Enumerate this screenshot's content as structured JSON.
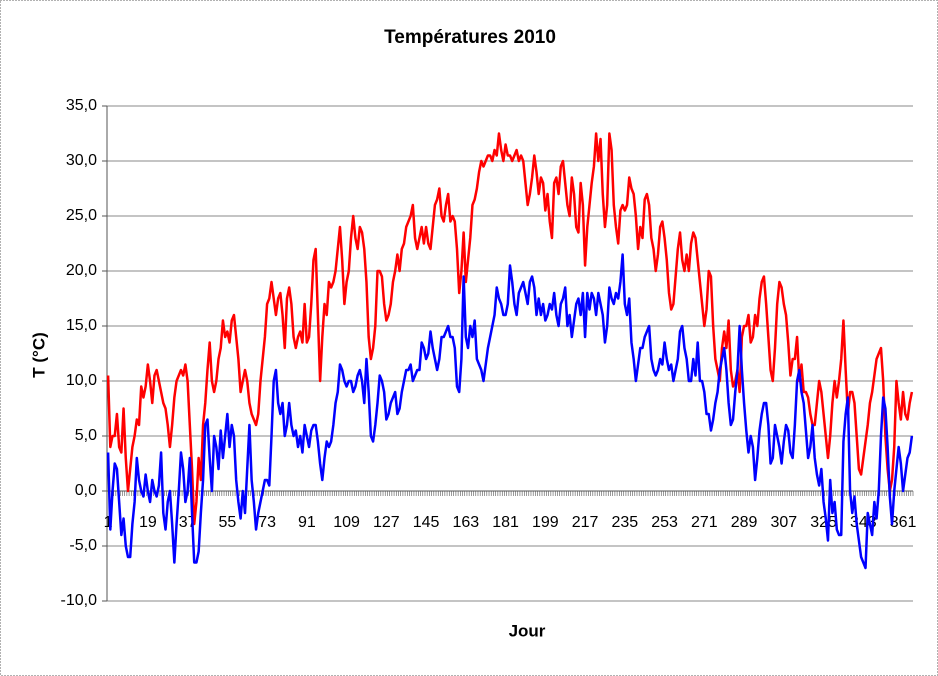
{
  "chart_data": {
    "type": "line",
    "title": "Températures 2010",
    "xlabel": "Jour",
    "ylabel": "T (°C)",
    "categories": [
      "1",
      null,
      null,
      null,
      null,
      null,
      null,
      null,
      null,
      null,
      null,
      null,
      null,
      null,
      null,
      null,
      null,
      null,
      "19",
      null,
      null,
      null,
      null,
      null,
      null,
      null,
      null,
      null,
      null,
      null,
      null,
      null,
      null,
      null,
      null,
      null,
      "37",
      null,
      null,
      null,
      null,
      null,
      null,
      null,
      null,
      null,
      null,
      null,
      null,
      null,
      null,
      null,
      null,
      null,
      "55",
      null,
      null,
      null,
      null,
      null,
      null,
      null,
      null,
      null,
      null,
      null,
      null,
      null,
      null,
      null,
      null,
      null,
      "73",
      null,
      null,
      null,
      null,
      null,
      null,
      null,
      null,
      null,
      null,
      null,
      null,
      null,
      null,
      null,
      null,
      null,
      "91",
      null,
      null,
      null,
      null,
      null,
      null,
      null,
      null,
      null,
      null,
      null,
      null,
      null,
      null,
      null,
      null,
      null,
      "109",
      null,
      null,
      null,
      null,
      null,
      null,
      null,
      null,
      null,
      null,
      null,
      null,
      null,
      null,
      null,
      null,
      null,
      "127",
      null,
      null,
      null,
      null,
      null,
      null,
      null,
      null,
      null,
      null,
      null,
      null,
      null,
      null,
      null,
      null,
      null,
      "145",
      null,
      null,
      null,
      null,
      null,
      null,
      null,
      null,
      null,
      null,
      null,
      null,
      null,
      null,
      null,
      null,
      null,
      "163",
      null,
      null,
      null,
      null,
      null,
      null,
      null,
      null,
      null,
      null,
      null,
      null,
      null,
      null,
      null,
      null,
      null,
      "181",
      null,
      null,
      null,
      null,
      null,
      null,
      null,
      null,
      null,
      null,
      null,
      null,
      null,
      null,
      null,
      null,
      null,
      "199",
      null,
      null,
      null,
      null,
      null,
      null,
      null,
      null,
      null,
      null,
      null,
      null,
      null,
      null,
      null,
      null,
      null,
      "217",
      null,
      null,
      null,
      null,
      null,
      null,
      null,
      null,
      null,
      null,
      null,
      null,
      null,
      null,
      null,
      null,
      null,
      "235",
      null,
      null,
      null,
      null,
      null,
      null,
      null,
      null,
      null,
      null,
      null,
      null,
      null,
      null,
      null,
      null,
      null,
      "253",
      null,
      null,
      null,
      null,
      null,
      null,
      null,
      null,
      null,
      null,
      null,
      null,
      null,
      null,
      null,
      null,
      null,
      "271",
      null,
      null,
      null,
      null,
      null,
      null,
      null,
      null,
      null,
      null,
      null,
      null,
      null,
      null,
      null,
      null,
      null,
      "289",
      null,
      null,
      null,
      null,
      null,
      null,
      null,
      null,
      null,
      null,
      null,
      null,
      null,
      null,
      null,
      null,
      null,
      "307",
      null,
      null,
      null,
      null,
      null,
      null,
      null,
      null,
      null,
      null,
      null,
      null,
      null,
      null,
      null,
      null,
      null,
      "325",
      null,
      null,
      null,
      null,
      null,
      null,
      null,
      null,
      null,
      null,
      null,
      null,
      null,
      null,
      null,
      null,
      null,
      "343",
      null,
      null,
      null,
      null,
      null,
      null,
      null,
      null,
      null,
      null,
      null,
      null,
      null,
      null,
      null,
      null,
      null,
      "361",
      null,
      null,
      null,
      null
    ],
    "series": [
      {
        "color": "#ff0000",
        "values": [
          10.5,
          4,
          5,
          5,
          7,
          4,
          3.5,
          7.5,
          3,
          0,
          2,
          4,
          5,
          6.5,
          6,
          9.5,
          8.5,
          9.5,
          11.5,
          10,
          8,
          10.5,
          11,
          10,
          9,
          8,
          7.5,
          6,
          4,
          6,
          8.5,
          10,
          10.5,
          11,
          10.5,
          11.5,
          10,
          6,
          2,
          -3,
          -1,
          3,
          1,
          6,
          8,
          11,
          13.5,
          10,
          9,
          10,
          12,
          13,
          15.5,
          14,
          14.5,
          13.5,
          15.5,
          16,
          14,
          12,
          9,
          10,
          11,
          10,
          8,
          7,
          6.5,
          6,
          7,
          10,
          12,
          14,
          17,
          17.5,
          19,
          17.5,
          16,
          17.5,
          18,
          16,
          13,
          17.5,
          18.5,
          17,
          14,
          13,
          14,
          14.5,
          13.5,
          17,
          13.5,
          14,
          17,
          21,
          22,
          16,
          10,
          14,
          17,
          16,
          19,
          18.5,
          19,
          20,
          22,
          24,
          21,
          17,
          19,
          20,
          23,
          25,
          23,
          22,
          24,
          23.5,
          22,
          19,
          14,
          12,
          13,
          15,
          20,
          20,
          19.5,
          17,
          15.5,
          16,
          17,
          19,
          20,
          21.5,
          20,
          22,
          22.5,
          24,
          24.5,
          25,
          26,
          23,
          22,
          23,
          24,
          22.5,
          24,
          22.5,
          22,
          24,
          26,
          26.5,
          27.5,
          25,
          24.5,
          26,
          27,
          24.5,
          25,
          24.5,
          22,
          18,
          20,
          23.5,
          19,
          21,
          23,
          26,
          26.5,
          27.5,
          29,
          30,
          29.5,
          30,
          30.5,
          30.5,
          30,
          31,
          30.5,
          32.5,
          31,
          30,
          31.5,
          30.5,
          30.5,
          30,
          30.5,
          31,
          30,
          30.5,
          30,
          28,
          26,
          27,
          28.5,
          30.5,
          29,
          27,
          28.5,
          28,
          25.5,
          27,
          24.5,
          23,
          28,
          28.5,
          27,
          29.5,
          30,
          28,
          26,
          25,
          28.5,
          27,
          24,
          23.5,
          28,
          26,
          20.5,
          24,
          26,
          28,
          29.5,
          32.5,
          30,
          32,
          27,
          24,
          26,
          32.5,
          31,
          26,
          24,
          22.5,
          25.5,
          26,
          25.5,
          26,
          28.5,
          27.5,
          27,
          25,
          22,
          24,
          23,
          26.5,
          27,
          26,
          23,
          22,
          20,
          21.5,
          24,
          24.5,
          23,
          21,
          18,
          16.5,
          17,
          19.5,
          22,
          23.5,
          21,
          20,
          21.5,
          20,
          22.5,
          23.5,
          23,
          21,
          19,
          17,
          15,
          16.5,
          20,
          19.5,
          15,
          12,
          11,
          10,
          13,
          14.5,
          13,
          15.5,
          11,
          9.5,
          10,
          11,
          9,
          14,
          15,
          15,
          16,
          13.5,
          14,
          16,
          15,
          17.5,
          19,
          19.5,
          17,
          14,
          11,
          10,
          13,
          17,
          19,
          18.5,
          17,
          16,
          13.5,
          10.5,
          12,
          12,
          14,
          10,
          11.5,
          9,
          9,
          8.5,
          7,
          6,
          6,
          8,
          10,
          9,
          7,
          5,
          3,
          5,
          8,
          10,
          8.5,
          10,
          12,
          15.5,
          11,
          7,
          9,
          9,
          8,
          5,
          2,
          1.5,
          3,
          4.5,
          6,
          8,
          9,
          10.5,
          12,
          12.5,
          13,
          10,
          5,
          2,
          0,
          1,
          4,
          10,
          8,
          6.5,
          9,
          7,
          6.5,
          8,
          9
        ]
      },
      {
        "color": "#0000ff",
        "values": [
          3.5,
          -3.5,
          0,
          2.5,
          2,
          -1,
          -4,
          -2.5,
          -5,
          -6,
          -6,
          -3,
          -1,
          3,
          1,
          0,
          -0.5,
          1.5,
          0,
          -1,
          1,
          0,
          -0.5,
          0.5,
          3.5,
          -2,
          -3.5,
          -1,
          0,
          -3,
          -6.5,
          -3,
          0,
          3.5,
          2,
          -1,
          0,
          3,
          -2,
          -6.5,
          -6.5,
          -5.5,
          -2,
          1,
          6,
          6.5,
          3,
          0,
          5,
          4,
          2,
          5.5,
          3,
          5,
          7,
          4,
          6,
          5,
          1,
          -1,
          -2.5,
          0,
          -2,
          2,
          6,
          1,
          -1,
          -3.5,
          -2,
          -1,
          0,
          1,
          1,
          0.5,
          5,
          10,
          11,
          8,
          7,
          8,
          5,
          6,
          8,
          6,
          5,
          5.5,
          4,
          5,
          3.5,
          6,
          5,
          4,
          5.5,
          6,
          6,
          4.5,
          2.5,
          1,
          3,
          4.5,
          4,
          4.5,
          6,
          8,
          9,
          11.5,
          11,
          10,
          9.5,
          10,
          10,
          9,
          9.5,
          10.5,
          11,
          10,
          8,
          12,
          9,
          5,
          4.5,
          6,
          8,
          10.5,
          10,
          9,
          6.5,
          7,
          8,
          8.5,
          9,
          7,
          7.5,
          9,
          10,
          11,
          11,
          11.5,
          10,
          10.5,
          11,
          11,
          13.5,
          13,
          12,
          12.5,
          14.5,
          13,
          12,
          11,
          12,
          14,
          14,
          14.5,
          15,
          14,
          14,
          13,
          9.5,
          9,
          12,
          19.5,
          14,
          13,
          15,
          14,
          15.5,
          12,
          11.5,
          11,
          10,
          11.5,
          13,
          14,
          15,
          16,
          18.5,
          17.5,
          17,
          16,
          16,
          17,
          20.5,
          19,
          17,
          16,
          18,
          18.5,
          19,
          18,
          17,
          19,
          19.5,
          18.5,
          16,
          17.5,
          16,
          17,
          15.5,
          16,
          17,
          16.5,
          18,
          16,
          15,
          17,
          17.5,
          18.5,
          15,
          16,
          14,
          15.5,
          17,
          17.5,
          16,
          18,
          14,
          18,
          16.5,
          18,
          17.5,
          16,
          18,
          17,
          16,
          13.5,
          15,
          18.5,
          17.5,
          17,
          18,
          17.5,
          19,
          21.5,
          17,
          16,
          17.5,
          13.5,
          12,
          10,
          11.5,
          13,
          13,
          14,
          14.5,
          15,
          12,
          11,
          10.5,
          11,
          12,
          11.5,
          13.5,
          12,
          11,
          11.5,
          10,
          11,
          12,
          14.5,
          15,
          13,
          12,
          10,
          10,
          12,
          10.5,
          13.5,
          10,
          10,
          9,
          7,
          7,
          5.5,
          6.5,
          8,
          9,
          11,
          12,
          13,
          11,
          8,
          6,
          6.5,
          9,
          11,
          15,
          11,
          8,
          5.5,
          3.5,
          5,
          4,
          1,
          3,
          5.5,
          7,
          8,
          8,
          6,
          2.5,
          3,
          6,
          5,
          4,
          2.5,
          4.5,
          6,
          5.5,
          3.5,
          3,
          6,
          10,
          11,
          9,
          8,
          5.5,
          3,
          4,
          6,
          3,
          1.5,
          0.5,
          2,
          -1,
          -2.5,
          -4.5,
          1,
          -2,
          -1,
          -3.5,
          -4,
          -4,
          4.5,
          7,
          8.5,
          0,
          -2,
          -0.5,
          -3,
          -4.5,
          -6,
          -6.5,
          -7,
          -2,
          -3,
          -4,
          -1,
          -2.5,
          0,
          5,
          8.5,
          7.5,
          4,
          -0.5,
          -3,
          0,
          2,
          4,
          2.5,
          0,
          1.5,
          3,
          3.5,
          5
        ]
      }
    ],
    "ylim": [
      -10,
      35
    ],
    "yticks": [
      {
        "value": -10,
        "label": "-10,0"
      },
      {
        "value": -5,
        "label": "-5,0"
      },
      {
        "value": 0,
        "label": "0,0"
      },
      {
        "value": 5,
        "label": "5,0"
      },
      {
        "value": 10,
        "label": "10,0"
      },
      {
        "value": 15,
        "label": "15,0"
      },
      {
        "value": 20,
        "label": "20,0"
      },
      {
        "value": 25,
        "label": "25,0"
      },
      {
        "value": 30,
        "label": "30,0"
      },
      {
        "value": 35,
        "label": "35,0"
      }
    ],
    "grid": true
  }
}
